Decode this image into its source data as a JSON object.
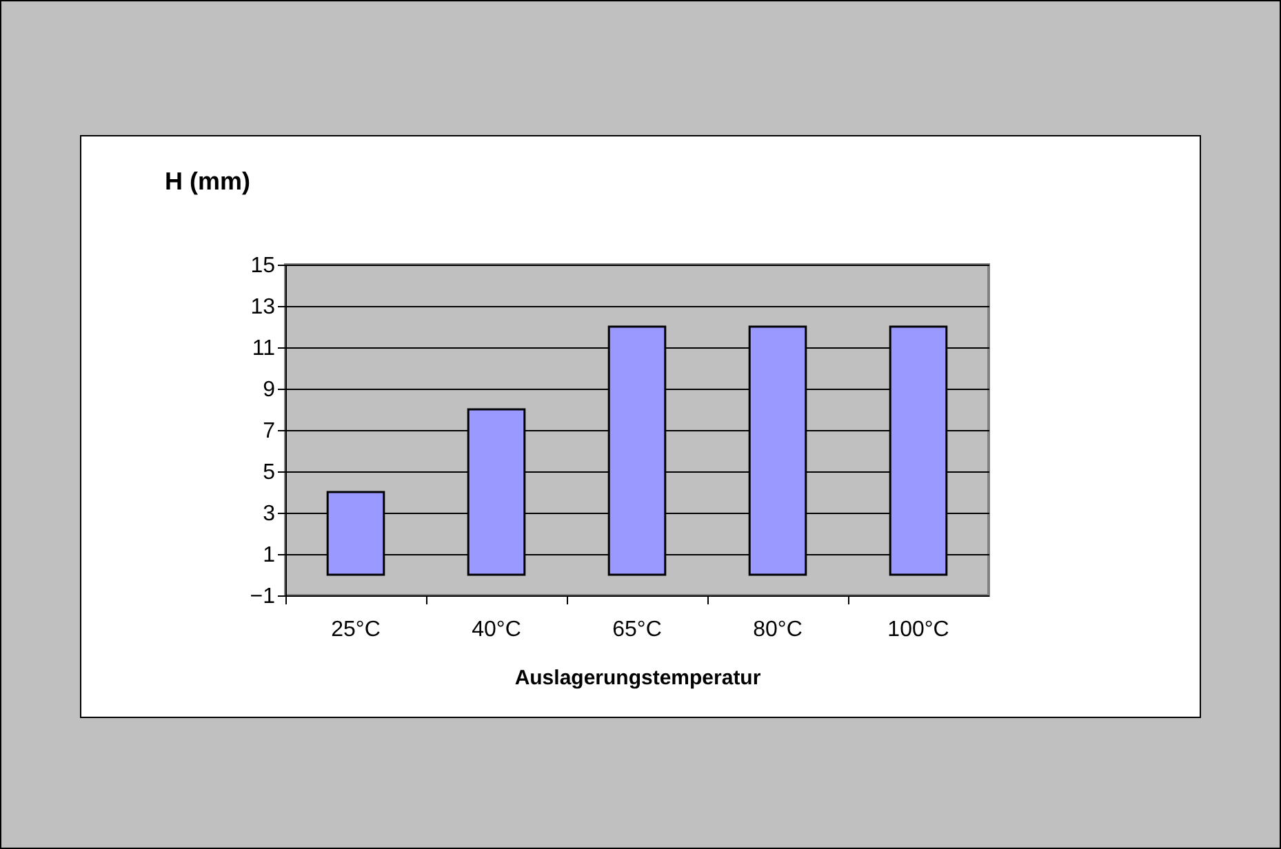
{
  "chart_data": {
    "type": "bar",
    "ylabel": "H (mm)",
    "xlabel": "Auslagerungstemperatur",
    "categories": [
      "25°C",
      "40°C",
      "65°C",
      "80°C",
      "100°C"
    ],
    "values": [
      4,
      8,
      12,
      12,
      12
    ],
    "color": "#9999ff",
    "ylim": [
      -1,
      15
    ],
    "yticks": [
      -1,
      1,
      3,
      5,
      7,
      9,
      11,
      13,
      15
    ],
    "grid": true
  }
}
